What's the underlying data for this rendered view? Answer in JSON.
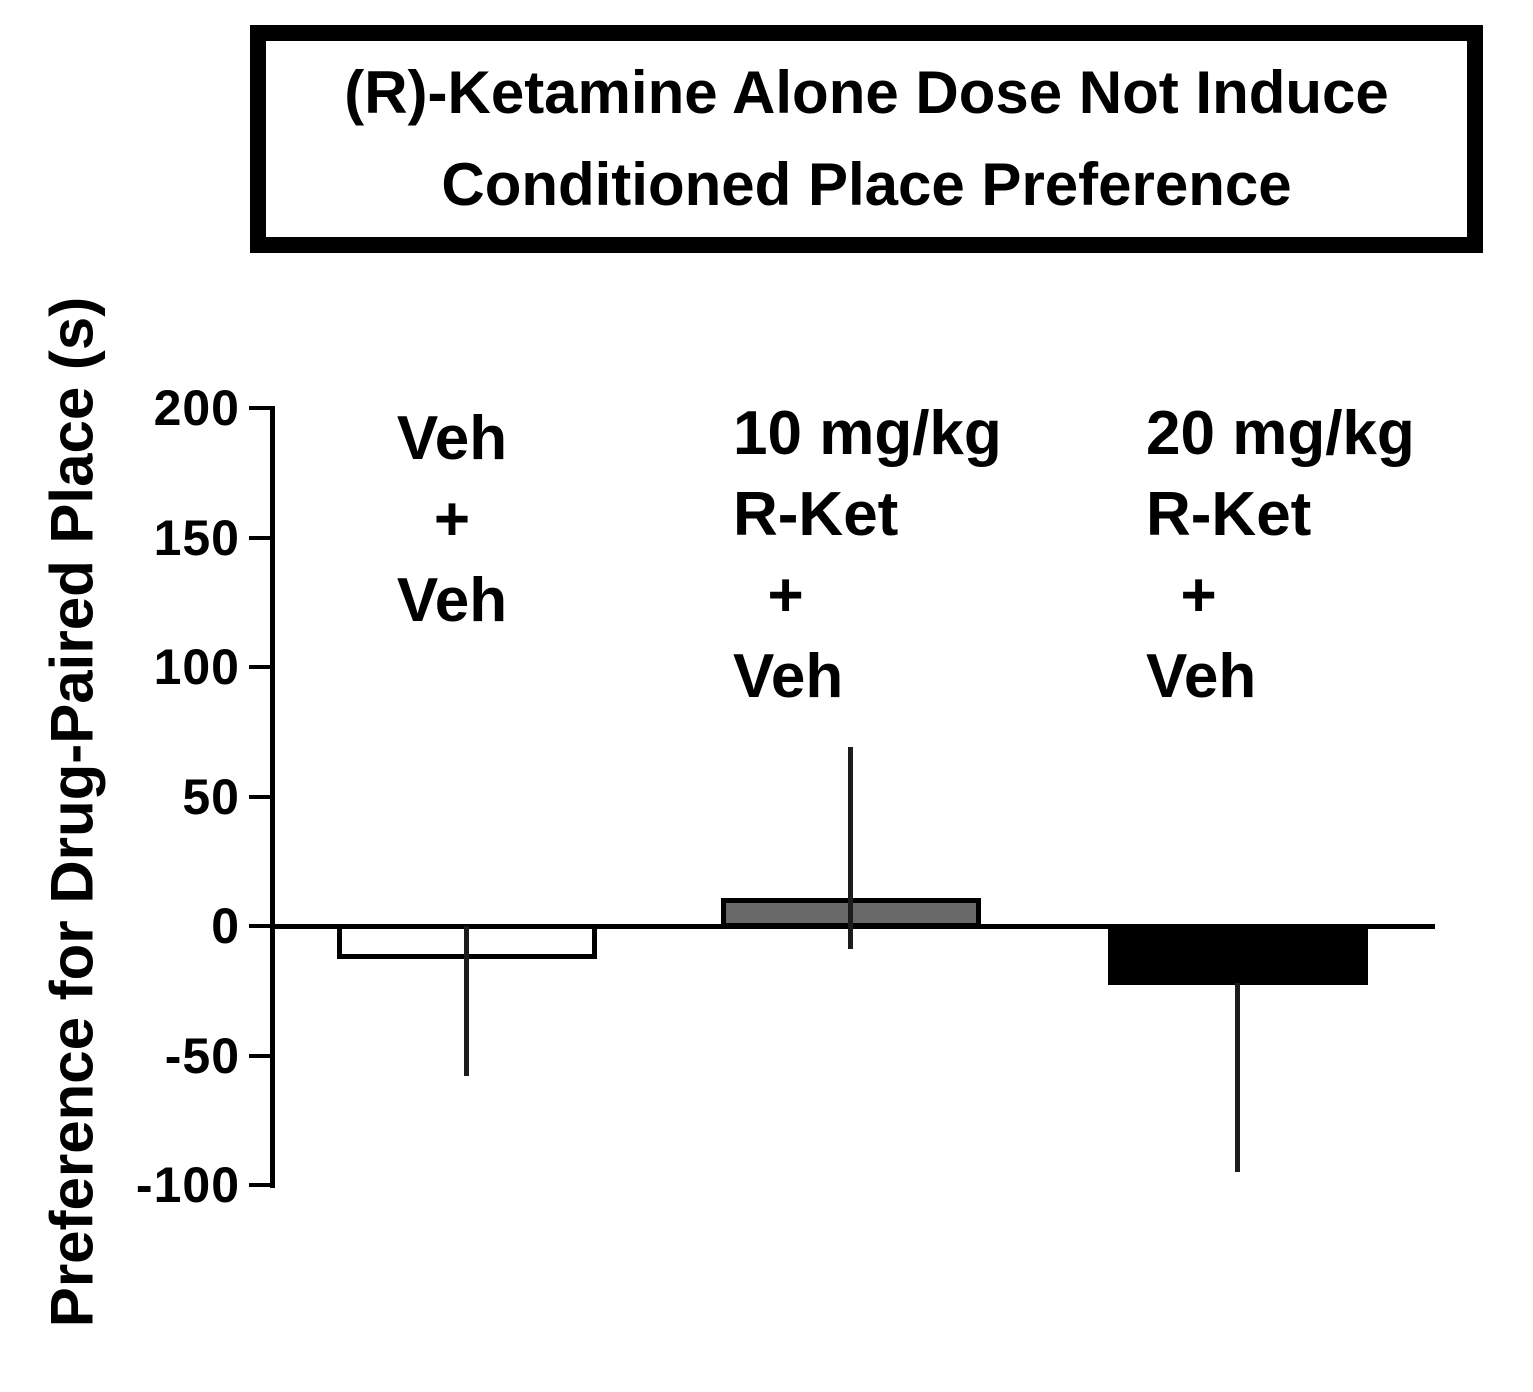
{
  "figure": {
    "title_line1": "(R)-Ketamine Alone Dose Not Induce",
    "title_line2": "Conditioned Place Preference"
  },
  "chart_data": {
    "type": "bar",
    "title": "(R)-Ketamine Alone Dose Not Induce Conditioned Place Preference",
    "ylabel": "Preference for Drug-Paired Place (s)",
    "xlabel": "",
    "ylim": [
      -100,
      200
    ],
    "yticks": [
      200,
      150,
      100,
      50,
      0,
      -50,
      -100
    ],
    "grid": false,
    "legend": "none",
    "categories": [
      "Veh + Veh",
      "10 mg/kg R-Ket + Veh",
      "20 mg/kg R-Ket + Veh"
    ],
    "values": [
      -12,
      10,
      -22
    ],
    "error_whiskers": [
      {
        "high": 0,
        "low": -58
      },
      {
        "high": 69,
        "low": -9
      },
      {
        "high": -22,
        "low": -95
      }
    ],
    "bar_fills": [
      "#ffffff",
      "#696969",
      "#000000"
    ],
    "bar_outline": "#000000",
    "group_labels": [
      "Veh\n+\nVeh",
      "10 mg/kg\nR-Ket\n  +\nVeh",
      "20 mg/kg\nR-Ket\n  +\nVeh"
    ]
  },
  "colors": {
    "background": "#ffffff",
    "axis": "#000000",
    "text": "#000000"
  }
}
